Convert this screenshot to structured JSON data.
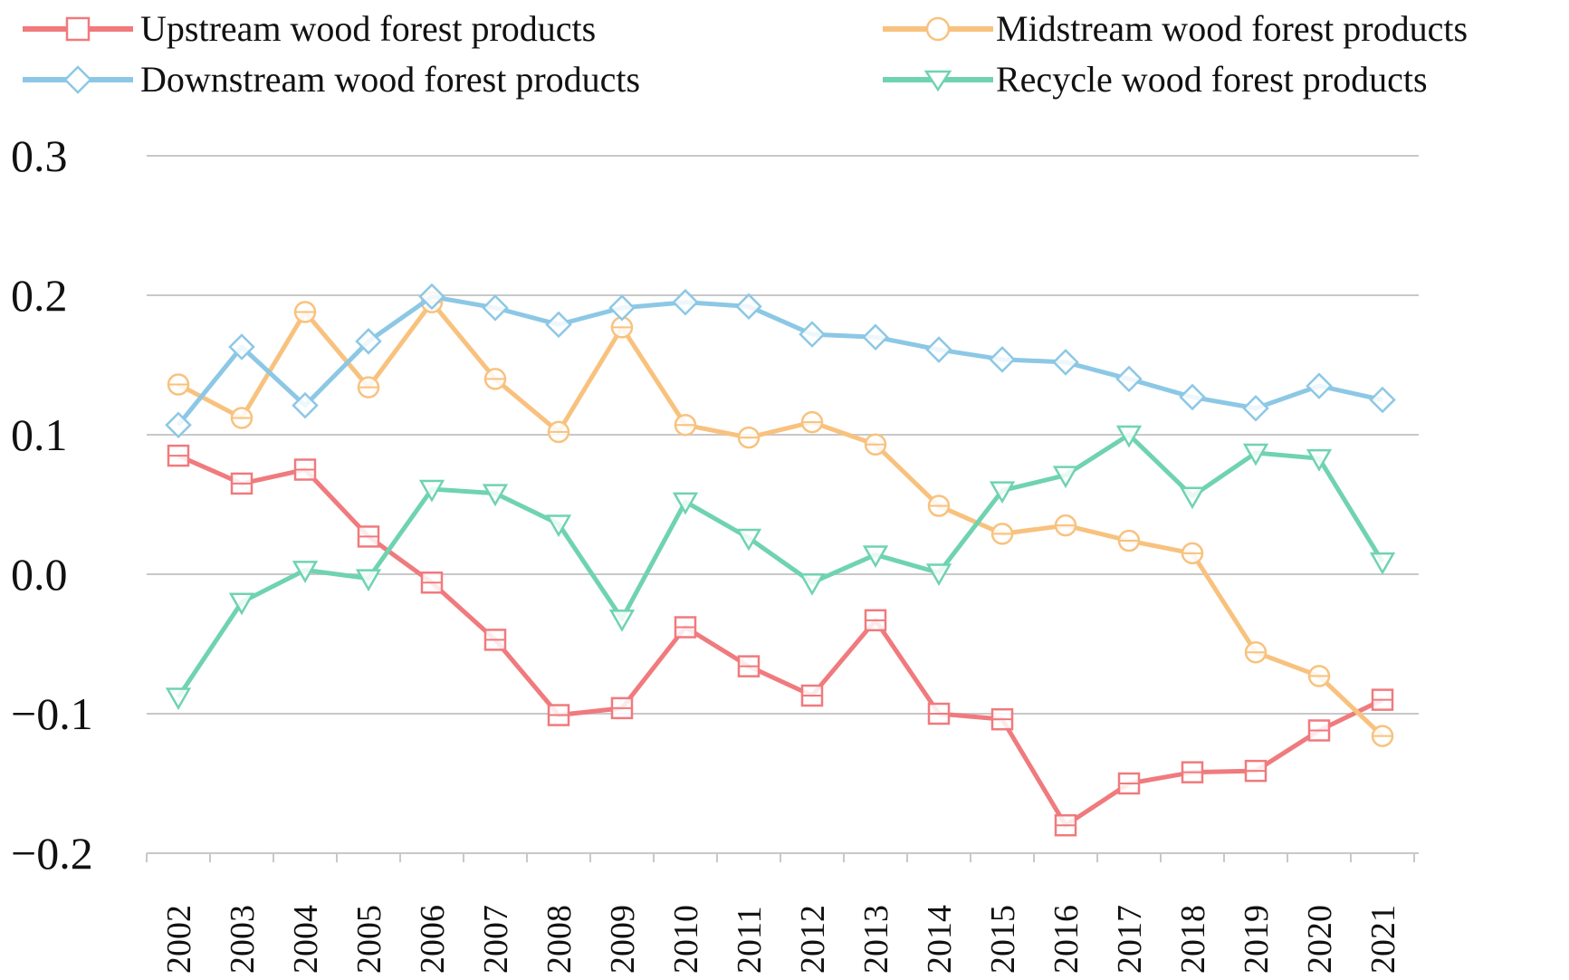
{
  "chart_data": {
    "type": "line",
    "title": "",
    "xlabel": "",
    "ylabel": "",
    "x": [
      "2002",
      "2003",
      "2004",
      "2005",
      "2006",
      "2007",
      "2008",
      "2009",
      "2010",
      "2011",
      "2012",
      "2013",
      "2014",
      "2015",
      "2016",
      "2017",
      "2018",
      "2019",
      "2020",
      "2021"
    ],
    "ylim": [
      -0.2,
      0.3
    ],
    "yticks": [
      0.3,
      0.2,
      0.1,
      0.0,
      -0.1,
      -0.2
    ],
    "ytick_labels": [
      "0.3",
      "0.2",
      "0.1",
      "0.0",
      "−0.1",
      "−0.2"
    ],
    "grid": true,
    "legend_position": "top",
    "series": [
      {
        "name": "Upstream wood forest products",
        "color": "#f07a7d",
        "marker": "square",
        "values": [
          0.085,
          0.065,
          0.075,
          0.027,
          -0.006,
          -0.047,
          -0.101,
          -0.096,
          -0.038,
          -0.066,
          -0.087,
          -0.033,
          -0.1,
          -0.104,
          -0.18,
          -0.15,
          -0.142,
          -0.141,
          -0.112,
          -0.09
        ]
      },
      {
        "name": "Midstream wood forest products",
        "color": "#f8c27e",
        "marker": "circle",
        "values": [
          0.136,
          0.112,
          0.188,
          0.134,
          0.195,
          0.14,
          0.102,
          0.177,
          0.107,
          0.098,
          0.109,
          0.093,
          0.049,
          0.029,
          0.035,
          0.024,
          0.015,
          -0.056,
          -0.073,
          -0.116
        ]
      },
      {
        "name": "Downstream wood forest products",
        "color": "#8cc8e5",
        "marker": "diamond",
        "values": [
          0.107,
          0.163,
          0.121,
          0.167,
          0.199,
          0.191,
          0.179,
          0.191,
          0.195,
          0.192,
          0.172,
          0.17,
          0.161,
          0.154,
          0.152,
          0.14,
          0.127,
          0.119,
          0.135,
          0.125
        ]
      },
      {
        "name": "Recycle wood forest products",
        "color": "#6fd3b0",
        "marker": "triangle-down",
        "values": [
          -0.088,
          -0.02,
          0.003,
          -0.003,
          0.061,
          0.058,
          0.036,
          -0.032,
          0.052,
          0.026,
          -0.006,
          0.014,
          0.001,
          0.06,
          0.071,
          0.1,
          0.056,
          0.087,
          0.083,
          0.009
        ]
      }
    ]
  }
}
